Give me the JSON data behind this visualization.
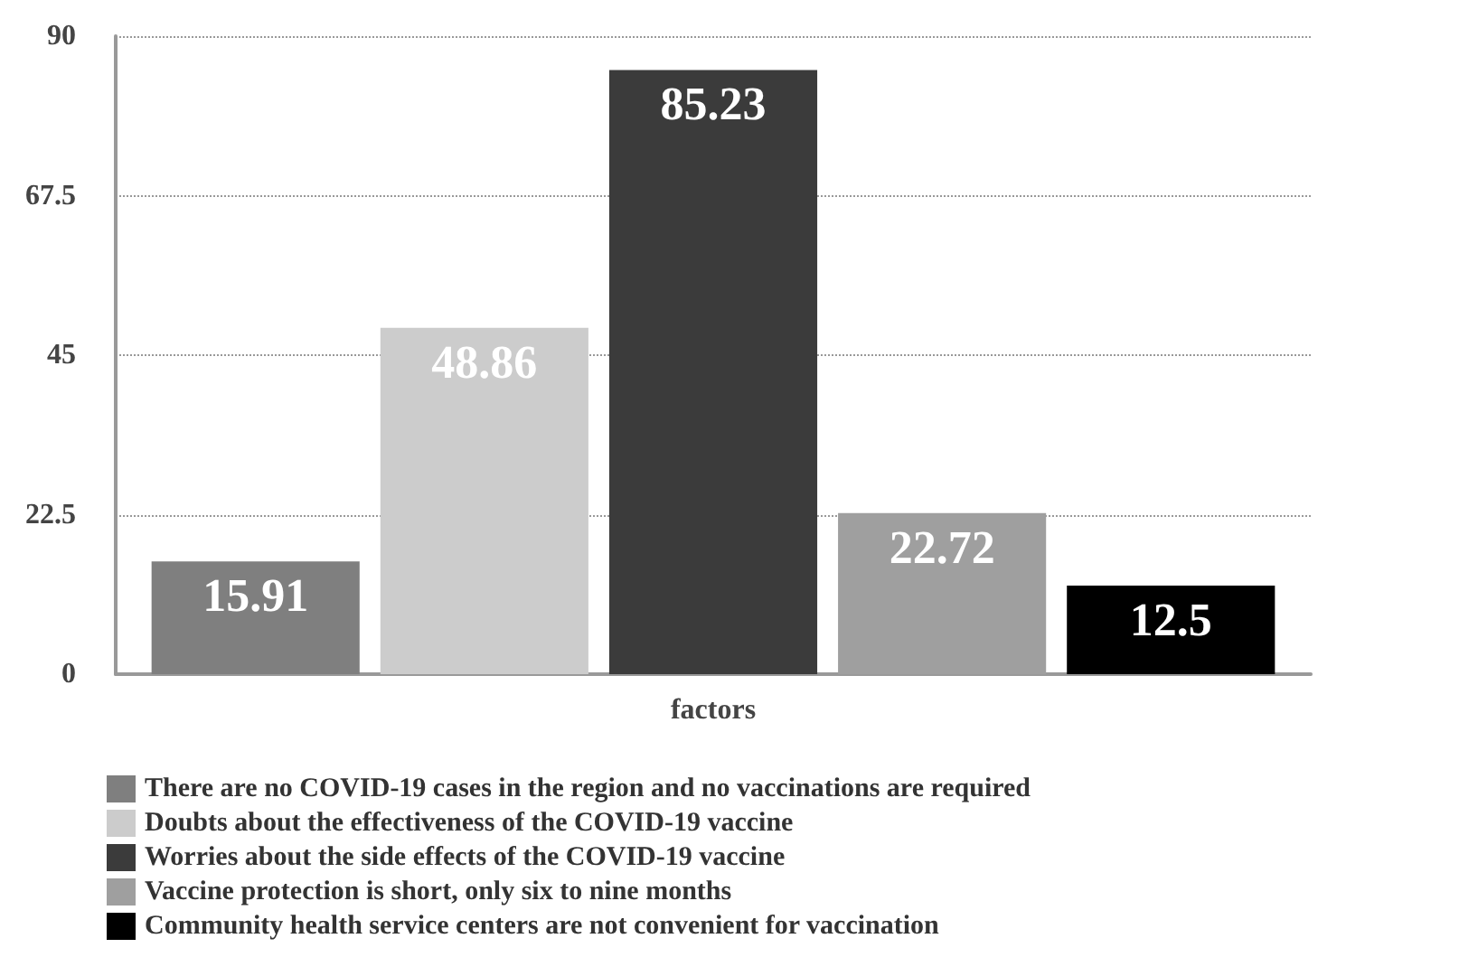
{
  "chart_data": {
    "type": "bar",
    "categories": [
      "factors"
    ],
    "series": [
      {
        "name": "There are no COVID-19 cases in the region and no vaccinations are required",
        "color": "#7f7f7f",
        "values": [
          15.91
        ]
      },
      {
        "name": "Doubts about the effectiveness of the COVID-19 vaccine",
        "color": "#cccccc",
        "values": [
          48.86
        ]
      },
      {
        "name": "Worries about the side effects of the COVID-19 vaccine",
        "color": "#3b3b3b",
        "values": [
          85.23
        ]
      },
      {
        "name": "Vaccine protection is short, only six to nine months",
        "color": "#9f9f9f",
        "values": [
          22.72
        ]
      },
      {
        "name": "Community health service centers are not convenient for vaccination",
        "color": "#000000",
        "values": [
          12.5
        ]
      }
    ],
    "ylim": [
      0,
      90
    ],
    "yticks": [
      0,
      22.5,
      45,
      67.5,
      90
    ],
    "grid": "y",
    "legend": "bottom",
    "data_labels": true
  }
}
